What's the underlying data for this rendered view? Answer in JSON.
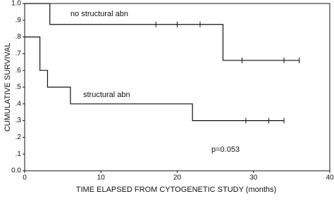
{
  "chart_data": {
    "type": "line",
    "step": true,
    "x_label": "TIME ELAPSED FROM CYTOGENETIC STUDY (months)",
    "y_label": "CUMULATIVE SURVIVAL",
    "annotation": "p=0.053",
    "xlim": [
      0,
      40
    ],
    "xticks": [
      0,
      10,
      20,
      30,
      40
    ],
    "ylim": [
      0,
      1
    ],
    "yticks": [
      {
        "value": 0,
        "label": "0.0"
      },
      {
        "value": 0.1,
        "label": ".1"
      },
      {
        "value": 0.2,
        "label": ".2"
      },
      {
        "value": 0.3,
        "label": ".3"
      },
      {
        "value": 0.4,
        "label": ".4"
      },
      {
        "value": 0.5,
        "label": ".5"
      },
      {
        "value": 0.6,
        "label": ".6"
      },
      {
        "value": 0.7,
        "label": ".7"
      },
      {
        "value": 0.8,
        "label": ".8"
      },
      {
        "value": 0.9,
        "label": ".9"
      },
      {
        "value": 1,
        "label": "1.0"
      }
    ],
    "series": [
      {
        "name": "no structural abn",
        "color": "#111111",
        "x": [
          0,
          3.3,
          26,
          36
        ],
        "values": [
          1,
          0.875,
          0.66,
          0.66
        ],
        "censored": {
          "x": [
            17.2,
            20,
            23,
            28.5,
            34,
            36
          ],
          "values": [
            0.875,
            0.875,
            0.875,
            0.66,
            0.66,
            0.66
          ]
        }
      },
      {
        "name": "structural abn",
        "color": "#111111",
        "x": [
          0,
          2,
          3,
          6,
          22,
          34
        ],
        "values": [
          0.8,
          0.6,
          0.5,
          0.4,
          0.3,
          0.3
        ],
        "censored": {
          "x": [
            29,
            32,
            34
          ],
          "values": [
            0.3,
            0.3,
            0.3
          ]
        }
      }
    ]
  }
}
